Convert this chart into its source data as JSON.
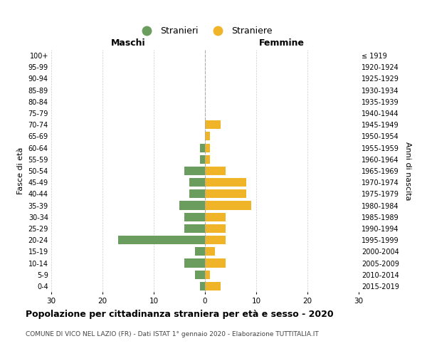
{
  "age_groups": [
    "100+",
    "95-99",
    "90-94",
    "85-89",
    "80-84",
    "75-79",
    "70-74",
    "65-69",
    "60-64",
    "55-59",
    "50-54",
    "45-49",
    "40-44",
    "35-39",
    "30-34",
    "25-29",
    "20-24",
    "15-19",
    "10-14",
    "5-9",
    "0-4"
  ],
  "birth_years": [
    "≤ 1919",
    "1920-1924",
    "1925-1929",
    "1930-1934",
    "1935-1939",
    "1940-1944",
    "1945-1949",
    "1950-1954",
    "1955-1959",
    "1960-1964",
    "1965-1969",
    "1970-1974",
    "1975-1979",
    "1980-1984",
    "1985-1989",
    "1990-1994",
    "1995-1999",
    "2000-2004",
    "2005-2009",
    "2010-2014",
    "2015-2019"
  ],
  "maschi": [
    0,
    0,
    0,
    0,
    0,
    0,
    0,
    0,
    1,
    1,
    4,
    3,
    3,
    5,
    4,
    4,
    17,
    2,
    4,
    2,
    1
  ],
  "femmine": [
    0,
    0,
    0,
    0,
    0,
    0,
    3,
    1,
    1,
    1,
    4,
    8,
    8,
    9,
    4,
    4,
    4,
    2,
    4,
    1,
    3
  ],
  "color_maschi": "#6b9e5e",
  "color_femmine": "#f0b429",
  "title": "Popolazione per cittadinanza straniera per età e sesso - 2020",
  "subtitle": "COMUNE DI VICO NEL LAZIO (FR) - Dati ISTAT 1° gennaio 2020 - Elaborazione TUTTITALIA.IT",
  "legend_maschi": "Stranieri",
  "legend_femmine": "Straniere",
  "xlabel_left": "Maschi",
  "xlabel_right": "Femmine",
  "ylabel_left": "Fasce di età",
  "ylabel_right": "Anni di nascita",
  "xlim": 30,
  "background_color": "#ffffff",
  "grid_color": "#cccccc"
}
